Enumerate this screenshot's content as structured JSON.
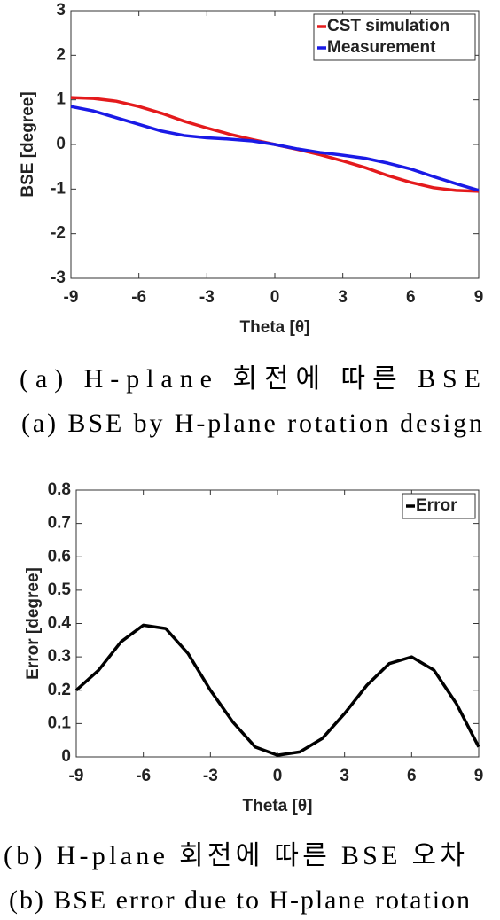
{
  "chart_data": [
    {
      "type": "line",
      "xlabel": "Theta [θ]",
      "ylabel": "BSE [degree]",
      "x": [
        -9,
        -8,
        -7,
        -6,
        -5,
        -4,
        -3,
        -2,
        -1,
        0,
        1,
        2,
        3,
        4,
        5,
        6,
        7,
        8,
        9
      ],
      "series": [
        {
          "name": "CST simulation",
          "color": "#e41a1c",
          "values": [
            1.05,
            1.03,
            0.97,
            0.85,
            0.7,
            0.52,
            0.37,
            0.23,
            0.11,
            0,
            -0.11,
            -0.23,
            -0.37,
            -0.52,
            -0.7,
            -0.85,
            -0.97,
            -1.03,
            -1.05
          ]
        },
        {
          "name": "Measurement",
          "color": "#1a1ae6",
          "values": [
            0.85,
            0.75,
            0.6,
            0.45,
            0.3,
            0.2,
            0.15,
            0.12,
            0.08,
            0,
            -0.1,
            -0.18,
            -0.24,
            -0.31,
            -0.42,
            -0.55,
            -0.72,
            -0.88,
            -1.03
          ]
        }
      ],
      "xlim": [
        -9,
        9
      ],
      "xticks": [
        -9,
        -6,
        -3,
        0,
        3,
        6,
        9
      ],
      "ylim": [
        -3,
        3
      ],
      "yticks": [
        -3,
        -2,
        -1,
        0,
        1,
        2,
        3
      ],
      "legend": "upper right",
      "caption": [
        "(a) H-plane 회전에 따른 BSE",
        "(a) BSE by H-plane rotation design"
      ]
    },
    {
      "type": "line",
      "xlabel": "Theta [θ]",
      "ylabel": "Error [degree]",
      "x": [
        -9,
        -8,
        -7,
        -6,
        -5,
        -4,
        -3,
        -2,
        -1,
        0,
        1,
        2,
        3,
        4,
        5,
        6,
        7,
        8,
        9
      ],
      "series": [
        {
          "name": "Error",
          "color": "#000000",
          "values": [
            0.2,
            0.26,
            0.345,
            0.395,
            0.385,
            0.31,
            0.2,
            0.105,
            0.03,
            0.005,
            0.015,
            0.055,
            0.13,
            0.215,
            0.28,
            0.3,
            0.26,
            0.16,
            0.03
          ]
        }
      ],
      "xlim": [
        -9,
        9
      ],
      "xticks": [
        -9,
        -6,
        -3,
        0,
        3,
        6,
        9
      ],
      "ylim": [
        0,
        0.8
      ],
      "yticks": [
        0,
        0.1,
        0.2,
        0.3,
        0.4,
        0.5,
        0.6,
        0.7,
        0.8
      ],
      "legend": "upper right",
      "caption": [
        "(b) H-plane 회전에 따른 BSE 오차",
        "(b) BSE error due to H-plane rotation"
      ]
    }
  ]
}
